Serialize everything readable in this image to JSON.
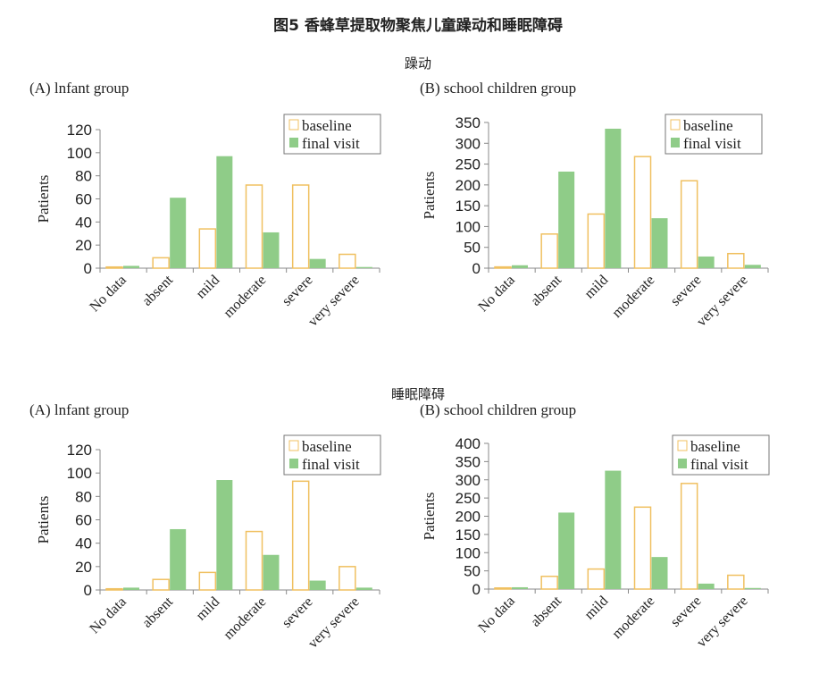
{
  "title": "图5 香蜂草提取物聚焦儿童躁动和睡眠障碍",
  "sections": [
    "躁动",
    "睡眠障碍"
  ],
  "colors": {
    "baseline_edge": "#f0c060",
    "final_fill": "#8fcc88",
    "axis": "#888888"
  },
  "chart_data": [
    {
      "type": "bar",
      "section": "躁动",
      "title": "(A) lnfant group",
      "ylabel": "Patients",
      "ylim": [
        0,
        120
      ],
      "yticks": [
        0,
        20,
        40,
        60,
        80,
        100,
        120
      ],
      "categories": [
        "No data",
        "absent",
        "mild",
        "moderate",
        "severe",
        "very severe"
      ],
      "legend_position": "top-right",
      "series": [
        {
          "name": "baseline",
          "values": [
            1,
            9,
            34,
            72,
            72,
            12
          ]
        },
        {
          "name": "final visit",
          "values": [
            2,
            61,
            97,
            31,
            8,
            1
          ]
        }
      ]
    },
    {
      "type": "bar",
      "section": "躁动",
      "title": "(B) school children group",
      "ylabel": "Patients",
      "ylim": [
        0,
        350
      ],
      "yticks": [
        0,
        50,
        100,
        150,
        200,
        250,
        300,
        350
      ],
      "categories": [
        "No data",
        "absent",
        "mild",
        "moderate",
        "severe",
        "very severe"
      ],
      "legend_position": "top-right",
      "series": [
        {
          "name": "baseline",
          "values": [
            3,
            82,
            130,
            268,
            210,
            35
          ]
        },
        {
          "name": "final visit",
          "values": [
            7,
            232,
            335,
            120,
            28,
            8
          ]
        }
      ]
    },
    {
      "type": "bar",
      "section": "睡眠障碍",
      "title": "(A) lnfant group",
      "ylabel": "Patients",
      "ylim": [
        0,
        120
      ],
      "yticks": [
        0,
        20,
        40,
        60,
        80,
        100,
        120
      ],
      "categories": [
        "No data",
        "absent",
        "mild",
        "moderate",
        "severe",
        "very severe"
      ],
      "legend_position": "top-right",
      "series": [
        {
          "name": "baseline",
          "values": [
            1,
            9,
            15,
            50,
            93,
            20
          ]
        },
        {
          "name": "final visit",
          "values": [
            2,
            52,
            94,
            30,
            8,
            2
          ]
        }
      ]
    },
    {
      "type": "bar",
      "section": "睡眠障碍",
      "title": "(B) school children group",
      "ylabel": "Patients",
      "ylim": [
        0,
        400
      ],
      "yticks": [
        0,
        50,
        100,
        150,
        200,
        250,
        300,
        350,
        400
      ],
      "categories": [
        "No data",
        "absent",
        "mild",
        "moderate",
        "severe",
        "very severe"
      ],
      "legend_position": "top-right",
      "series": [
        {
          "name": "baseline",
          "values": [
            3,
            35,
            55,
            225,
            290,
            38
          ]
        },
        {
          "name": "final visit",
          "values": [
            5,
            210,
            325,
            88,
            15,
            3
          ]
        }
      ]
    }
  ]
}
